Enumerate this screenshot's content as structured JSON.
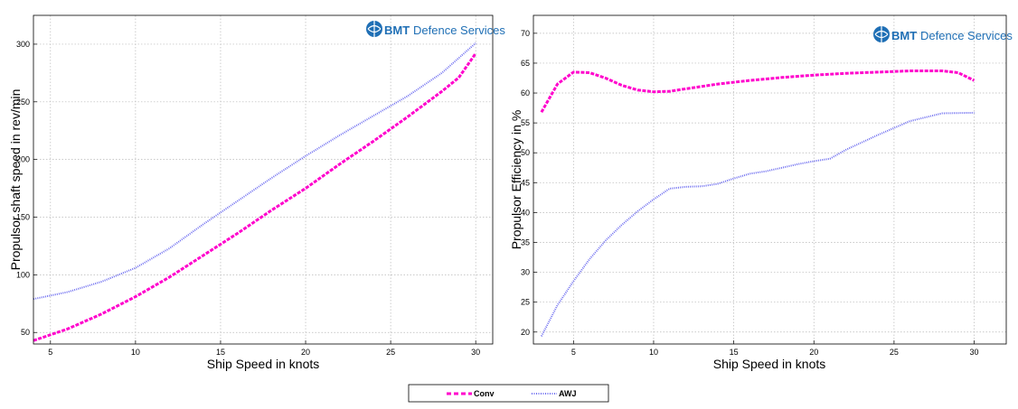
{
  "logo": {
    "brand": "BMT",
    "text": "Defence Services",
    "color": "#1f6fb5"
  },
  "legend": {
    "position": "bottom-center"
  },
  "colors": {
    "conv": "#ff00cc",
    "awj": "#6e6ef0"
  },
  "chart_data": [
    {
      "type": "line",
      "xlabel": "Ship Speed in knots",
      "ylabel": "Propulsor shaft speed in rev/min",
      "xlim": [
        4,
        31
      ],
      "ylim": [
        40,
        325
      ],
      "xticks": [
        5,
        10,
        15,
        20,
        25,
        30
      ],
      "yticks": [
        50,
        100,
        150,
        200,
        250,
        300
      ],
      "grid": true,
      "series": [
        {
          "name": "Conv",
          "color": "#ff00cc",
          "style": "dashed",
          "x": [
            4,
            6,
            8,
            10,
            12,
            14,
            16,
            18,
            20,
            22,
            24,
            26,
            28,
            29,
            30
          ],
          "y": [
            43,
            53,
            66,
            81,
            98,
            117,
            136,
            156,
            175,
            196,
            216,
            237,
            259,
            271,
            292
          ]
        },
        {
          "name": "AWJ",
          "color": "#6e6ef0",
          "style": "dotted",
          "x": [
            4,
            6,
            8,
            10,
            12,
            14,
            16,
            18,
            20,
            22,
            24,
            26,
            28,
            30
          ],
          "y": [
            79,
            85,
            94,
            106,
            123,
            144,
            164,
            184,
            203,
            221,
            238,
            255,
            275,
            301
          ]
        }
      ]
    },
    {
      "type": "line",
      "xlabel": "Ship Speed in knots",
      "ylabel": "Propulsor Efficiency in %",
      "xlim": [
        2.5,
        32
      ],
      "ylim": [
        18,
        73
      ],
      "xticks": [
        5,
        10,
        15,
        20,
        25,
        30
      ],
      "yticks": [
        20,
        25,
        30,
        35,
        40,
        45,
        50,
        55,
        60,
        65,
        70
      ],
      "grid": true,
      "series": [
        {
          "name": "Conv",
          "color": "#ff00cc",
          "style": "dashed",
          "x": [
            3,
            4,
            5,
            6,
            7,
            8,
            9,
            10,
            11,
            12,
            14,
            16,
            18,
            20,
            22,
            24,
            26,
            28,
            29,
            30
          ],
          "y": [
            56.8,
            61.5,
            63.5,
            63.4,
            62.5,
            61.3,
            60.5,
            60.2,
            60.3,
            60.7,
            61.5,
            62.1,
            62.6,
            63.0,
            63.3,
            63.5,
            63.7,
            63.7,
            63.4,
            62.1
          ]
        },
        {
          "name": "AWJ",
          "color": "#6e6ef0",
          "style": "dotted",
          "x": [
            3,
            4,
            5,
            6,
            7,
            8,
            9,
            10,
            11,
            12,
            13,
            14,
            15,
            16,
            17,
            18,
            19,
            20,
            21,
            22,
            24,
            26,
            28,
            30
          ],
          "y": [
            19.3,
            24.5,
            28.5,
            32.2,
            35.3,
            37.9,
            40.2,
            42.2,
            44.0,
            44.3,
            44.4,
            44.8,
            45.7,
            46.5,
            46.9,
            47.5,
            48.1,
            48.6,
            49.0,
            50.5,
            53.0,
            55.3,
            56.6,
            56.7
          ]
        }
      ]
    }
  ]
}
